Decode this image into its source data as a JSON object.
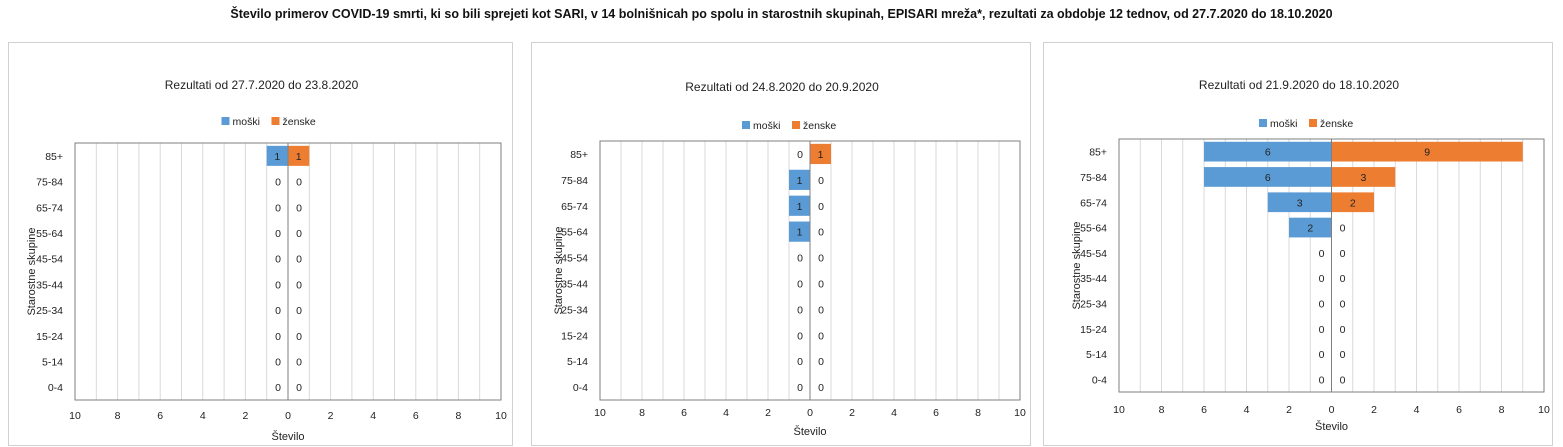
{
  "main_title": "Število primerov COVID-19 smrti, ki so bili sprejeti kot SARI, v 14 bolnišnicah po spolu in starostnih skupinah, EPISARI mreža*, rezultati za obdobje 12 tednov, od 27.7.2020 do 18.10.2020",
  "colors": {
    "male": "#5b9bd5",
    "female": "#ed7d31",
    "grid": "#d9d9d9",
    "axis": "#7f7f7f"
  },
  "chart_data": [
    {
      "type": "bar",
      "orientation": "horizontal",
      "title": "Rezultati od 27.7.2020 do 23.8.2020",
      "xlabel": "Število",
      "ylabel": "Starostne skupine",
      "xlim": [
        -10,
        10
      ],
      "xticks": [
        "10",
        "8",
        "6",
        "4",
        "2",
        "0",
        "2",
        "4",
        "6",
        "8",
        "10"
      ],
      "grid": true,
      "legend_position": "top",
      "categories": [
        "85+",
        "75-84",
        "65-74",
        "55-64",
        "45-54",
        "35-44",
        "25-34",
        "15-24",
        "5-14",
        "0-4"
      ],
      "series": [
        {
          "name": "moški",
          "values": [
            1,
            0,
            0,
            0,
            0,
            0,
            0,
            0,
            0,
            0
          ]
        },
        {
          "name": "ženske",
          "values": [
            1,
            0,
            0,
            0,
            0,
            0,
            0,
            0,
            0,
            0
          ]
        }
      ]
    },
    {
      "type": "bar",
      "orientation": "horizontal",
      "title": "Rezultati od 24.8.2020 do 20.9.2020",
      "xlabel": "Število",
      "ylabel": "Starostne skupine",
      "xlim": [
        -10,
        10
      ],
      "xticks": [
        "10",
        "8",
        "6",
        "4",
        "2",
        "0",
        "2",
        "4",
        "6",
        "8",
        "10"
      ],
      "grid": true,
      "legend_position": "top",
      "categories": [
        "85+",
        "75-84",
        "65-74",
        "55-64",
        "45-54",
        "35-44",
        "25-34",
        "15-24",
        "5-14",
        "0-4"
      ],
      "series": [
        {
          "name": "moški",
          "values": [
            0,
            1,
            1,
            1,
            0,
            0,
            0,
            0,
            0,
            0
          ]
        },
        {
          "name": "ženske",
          "values": [
            1,
            0,
            0,
            0,
            0,
            0,
            0,
            0,
            0,
            0
          ]
        }
      ]
    },
    {
      "type": "bar",
      "orientation": "horizontal",
      "title": "Rezultati od 21.9.2020 do 18.10.2020",
      "xlabel": "Število",
      "ylabel": "Starostne skupine",
      "xlim": [
        -10,
        10
      ],
      "xticks": [
        "10",
        "8",
        "6",
        "4",
        "2",
        "0",
        "2",
        "4",
        "6",
        "8",
        "10"
      ],
      "grid": true,
      "legend_position": "top",
      "categories": [
        "85+",
        "75-84",
        "65-74",
        "55-64",
        "45-54",
        "35-44",
        "25-34",
        "15-24",
        "5-14",
        "0-4"
      ],
      "series": [
        {
          "name": "moški",
          "values": [
            6,
            6,
            3,
            2,
            0,
            0,
            0,
            0,
            0,
            0
          ]
        },
        {
          "name": "ženske",
          "values": [
            9,
            3,
            2,
            0,
            0,
            0,
            0,
            0,
            0,
            0
          ]
        }
      ]
    }
  ]
}
